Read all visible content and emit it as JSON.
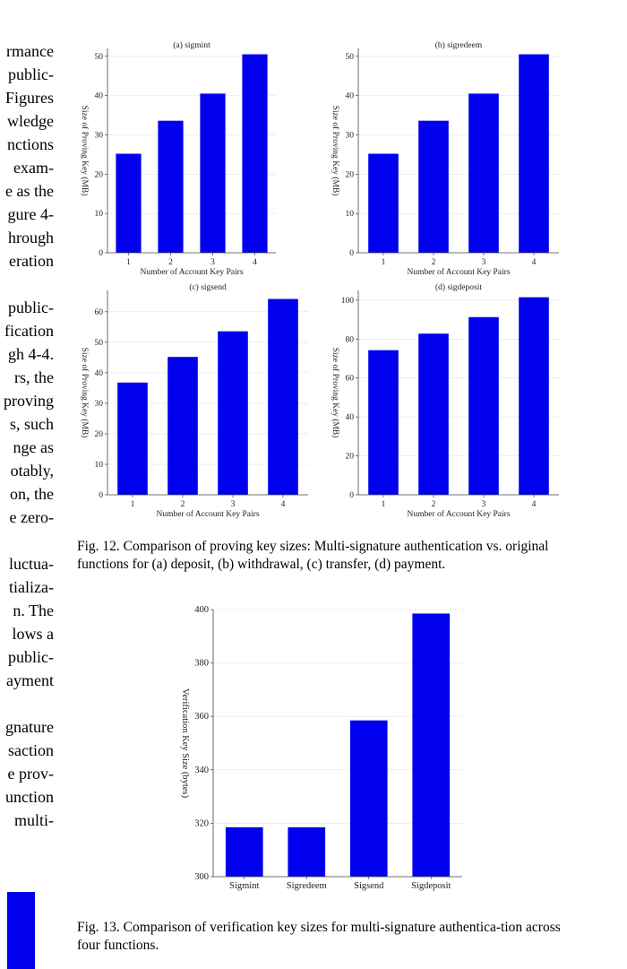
{
  "left_column_text": [
    "rmance",
    "public-",
    "Figures",
    "wledge",
    "nctions",
    "exam-",
    "e as the",
    "gure 4-",
    "hrough",
    "eration",
    "",
    "public-",
    "fication",
    "gh 4-4.",
    "rs, the",
    "proving",
    "s, such",
    "nge as",
    "otably,",
    "on, the",
    "e zero-",
    "",
    "luctua-",
    "tializa-",
    "n. The",
    "lows a",
    "public-",
    "ayment",
    "",
    "gnature",
    "saction",
    "e prov-",
    "unction",
    "multi-"
  ],
  "bar_color": "#0000ee",
  "captions": {
    "fig12": "Fig. 12.  Comparison of proving key sizes: Multi-signature authentication vs. original functions for (a) deposit, (b) withdrawal, (c) transfer, (d) payment.",
    "fig13": "Fig. 13.  Comparison of verification key sizes for multi-signature authentica-tion across four functions."
  },
  "chart_data": [
    {
      "id": "a",
      "type": "bar",
      "title": "(a) sigmint",
      "xlabel": "Number of Account Key Pairs",
      "ylabel": "Size of Proving Key (MB)",
      "categories": [
        "1",
        "2",
        "3",
        "4"
      ],
      "values": [
        25.2,
        33.6,
        40.5,
        50.5
      ],
      "ylim": [
        0,
        52
      ],
      "yticks": [
        0,
        10,
        20,
        30,
        40,
        50
      ],
      "grid": true
    },
    {
      "id": "b",
      "type": "bar",
      "title": "(b) sigredeem",
      "xlabel": "Number of Account Key Pairs",
      "ylabel": "Size of Proving Key (MB)",
      "categories": [
        "1",
        "2",
        "3",
        "4"
      ],
      "values": [
        25.2,
        33.6,
        40.5,
        50.5
      ],
      "ylim": [
        0,
        52
      ],
      "yticks": [
        0,
        10,
        20,
        30,
        40,
        50
      ],
      "grid": true
    },
    {
      "id": "c",
      "type": "bar",
      "title": "(c) sigsend",
      "xlabel": "Number of Account Key Pairs",
      "ylabel": "Size of Proving Key (MB)",
      "categories": [
        "1",
        "2",
        "3",
        "4"
      ],
      "values": [
        36.8,
        45.2,
        53.6,
        64.2
      ],
      "ylim": [
        0,
        67
      ],
      "yticks": [
        0,
        10,
        20,
        30,
        40,
        50,
        60
      ],
      "grid": true
    },
    {
      "id": "d",
      "type": "bar",
      "title": "(d) sigdeposit",
      "xlabel": "Number of Account Key Pairs",
      "ylabel": "Size of Proving Key (MB)",
      "categories": [
        "1",
        "2",
        "3",
        "4"
      ],
      "values": [
        74.3,
        82.8,
        91.3,
        101.5
      ],
      "ylim": [
        0,
        105
      ],
      "yticks": [
        0,
        20,
        40,
        60,
        80,
        100
      ],
      "grid": true
    },
    {
      "id": "e",
      "type": "bar",
      "title": "",
      "xlabel": "",
      "ylabel": "Verification Key Size (bytes)",
      "categories": [
        "Sigmint",
        "Sigredeem",
        "Sigsend",
        "Sigdeposit"
      ],
      "values": [
        318.5,
        318.5,
        358.5,
        398.5
      ],
      "ylim": [
        300,
        400
      ],
      "yticks": [
        300,
        320,
        340,
        360,
        380,
        400
      ],
      "grid": true
    }
  ]
}
